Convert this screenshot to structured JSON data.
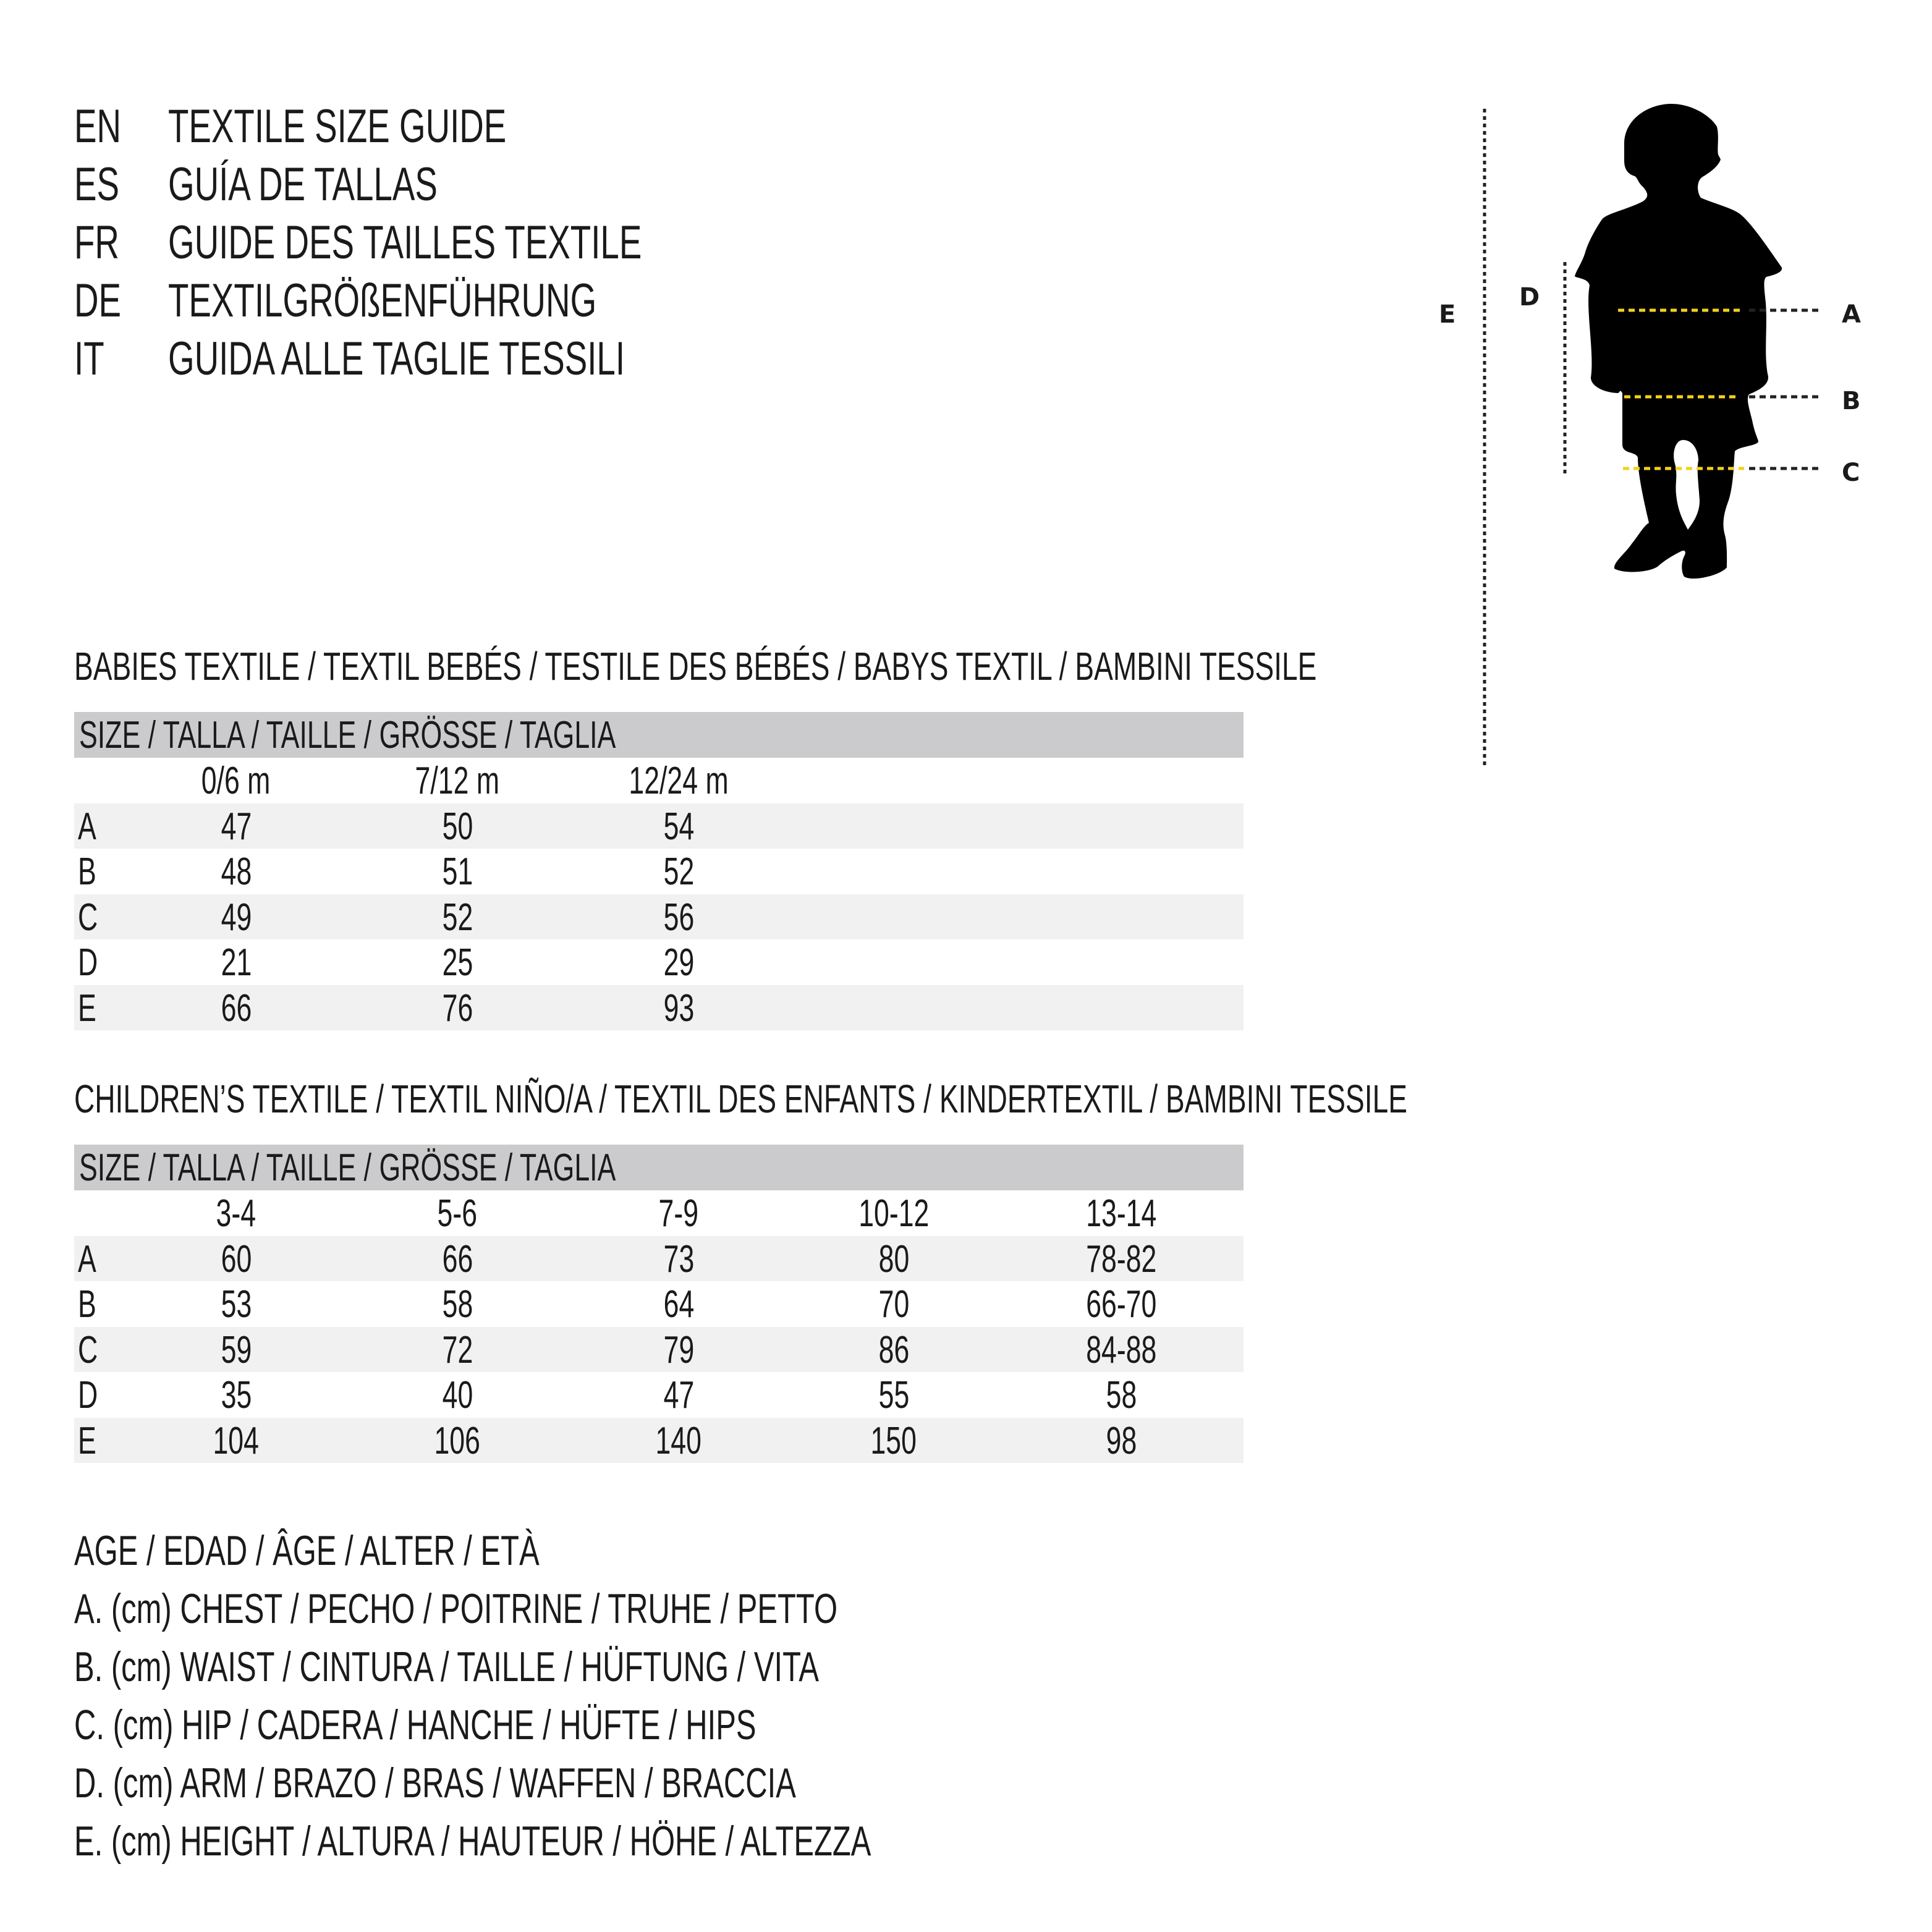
{
  "titles": [
    {
      "code": "EN",
      "text": "TEXTILE SIZE GUIDE"
    },
    {
      "code": "ES",
      "text": "GUÍA DE TALLAS"
    },
    {
      "code": "FR",
      "text": "GUIDE DES TAILLES TEXTILE"
    },
    {
      "code": "DE",
      "text": "TEXTILGRÖßENFÜHRUNG"
    },
    {
      "code": "IT",
      "text": "GUIDA ALLE TAGLIE TESSILI"
    }
  ],
  "babies": {
    "heading": "BABIES TEXTILE / TEXTIL BEBÉS / TESTILE DES BÉBÉS / BABYS TEXTIL / BAMBINI TESSILE",
    "size_header": "SIZE / TALLA / TAILLE / GRÖSSE / TAGLIA",
    "columns": [
      "0/6 m",
      "7/12 m",
      "12/24 m"
    ],
    "rows": [
      {
        "label": "A",
        "values": [
          "47",
          "50",
          "54"
        ]
      },
      {
        "label": "B",
        "values": [
          "48",
          "51",
          "52"
        ]
      },
      {
        "label": "C",
        "values": [
          "49",
          "52",
          "56"
        ]
      },
      {
        "label": "D",
        "values": [
          "21",
          "25",
          "29"
        ]
      },
      {
        "label": "E",
        "values": [
          "66",
          "76",
          "93"
        ]
      }
    ]
  },
  "children": {
    "heading": "CHILDREN’S TEXTILE / TEXTIL NIÑO/A / TEXTIL DES ENFANTS / KINDERTEXTIL / BAMBINI TESSILE",
    "size_header": "SIZE / TALLA / TAILLE / GRÖSSE / TAGLIA",
    "columns": [
      "3-4",
      "5-6",
      "7-9",
      "10-12",
      "13-14"
    ],
    "rows": [
      {
        "label": "A",
        "values": [
          "60",
          "66",
          "73",
          "80",
          "78-82"
        ]
      },
      {
        "label": "B",
        "values": [
          "53",
          "58",
          "64",
          "70",
          "66-70"
        ]
      },
      {
        "label": "C",
        "values": [
          "59",
          "72",
          "79",
          "86",
          "84-88"
        ]
      },
      {
        "label": "D",
        "values": [
          "35",
          "40",
          "47",
          "55",
          "58"
        ]
      },
      {
        "label": "E",
        "values": [
          "104",
          "106",
          "140",
          "150",
          "98"
        ]
      }
    ]
  },
  "legend": [
    "AGE / EDAD / ÂGE / ALTER / ETÀ",
    "A. (cm) CHEST / PECHO / POITRINE / TRUHE / PETTO",
    "B. (cm) WAIST / CINTURA / TAILLE / HÜFTUNG / VITA",
    "C. (cm) HIP / CADERA / HANCHE / HÜFTE / HIPS",
    "D. (cm) ARM / BRAZO / BRAS / WAFFEN / BRACCIA",
    "E. (cm) HEIGHT / ALTURA / HAUTEUR / HÖHE / ALTEZZA"
  ],
  "figure": {
    "labels": {
      "A": "A",
      "B": "B",
      "C": "C",
      "D": "D",
      "E": "E"
    },
    "colors": {
      "measure_line": "#f2d21b",
      "guide_line": "#222222",
      "silhouette": "#000000",
      "header_bar": "#cbcbcd",
      "row_shade": "#f1f1f1"
    }
  }
}
